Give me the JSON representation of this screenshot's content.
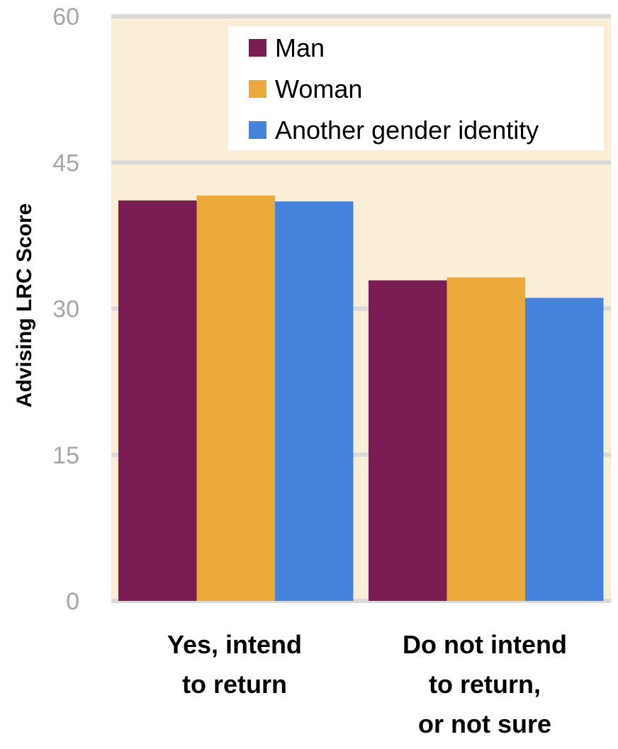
{
  "chart_data": {
    "type": "bar",
    "title": "",
    "xlabel": "",
    "ylabel": "Advising LRC Score",
    "ylim": [
      0,
      60
    ],
    "yticks": [
      0,
      15,
      30,
      45,
      60
    ],
    "grid": true,
    "legend_position": "top-right",
    "categories": [
      [
        "Yes, intend",
        "to return"
      ],
      [
        "Do not intend",
        "to return,",
        "or not sure"
      ]
    ],
    "series": [
      {
        "name": "Man",
        "color": "#7b1d55",
        "values": [
          41.1,
          32.9
        ]
      },
      {
        "name": "Woman",
        "color": "#eba93a",
        "values": [
          41.6,
          33.2
        ]
      },
      {
        "name": "Another gender identity",
        "color": "#4482db",
        "values": [
          41.0,
          31.1
        ]
      }
    ],
    "plot_background": "#fbeed7",
    "grid_color": "#d9d9d9"
  }
}
